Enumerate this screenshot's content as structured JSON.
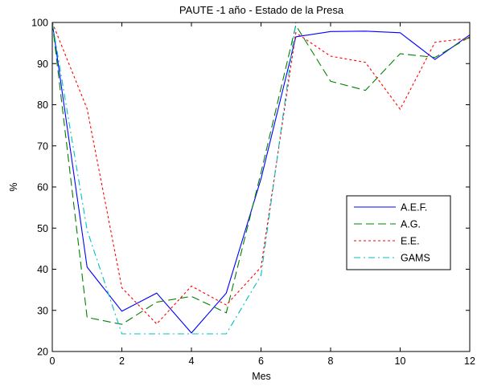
{
  "chart_data": {
    "type": "line",
    "title": "PAUTE -1 año - Estado de la Presa",
    "xlabel": "Mes",
    "ylabel": "%",
    "xlim": [
      0,
      12
    ],
    "ylim": [
      20,
      100
    ],
    "xticks": [
      0,
      2,
      4,
      6,
      8,
      10,
      12
    ],
    "yticks": [
      20,
      30,
      40,
      50,
      60,
      70,
      80,
      90,
      100
    ],
    "grid": false,
    "legend_position": "right",
    "x": [
      0,
      1,
      2,
      3,
      4,
      5,
      6,
      7,
      8,
      9,
      10,
      11,
      12
    ],
    "series": [
      {
        "name": "A.E.F.",
        "color": "#0000ff",
        "dash": "solid",
        "values": [
          100,
          40.5,
          29.8,
          34.2,
          24.5,
          34.2,
          62,
          96.5,
          97.8,
          97.9,
          97.5,
          91,
          97
        ]
      },
      {
        "name": "A.G.",
        "color": "#008000",
        "dash": "dashed",
        "values": [
          100,
          28.3,
          26.6,
          32,
          33.4,
          29.4,
          63.5,
          99.3,
          85.7,
          83.5,
          92.4,
          91.5,
          96.5
        ]
      },
      {
        "name": "E.E.",
        "color": "#ff0000",
        "dash": "dotted",
        "values": [
          100,
          79,
          35.5,
          26.7,
          35.9,
          31.3,
          40.5,
          97.5,
          91.8,
          90.3,
          78.9,
          95.2,
          96.2
        ]
      },
      {
        "name": "GAMS",
        "color": "#00bfbf",
        "dash": "dashdot",
        "values": [
          100,
          49.5,
          24.3,
          24.3,
          24.3,
          24.3,
          38.5,
          100,
          100,
          100,
          100,
          100,
          100
        ]
      }
    ]
  }
}
